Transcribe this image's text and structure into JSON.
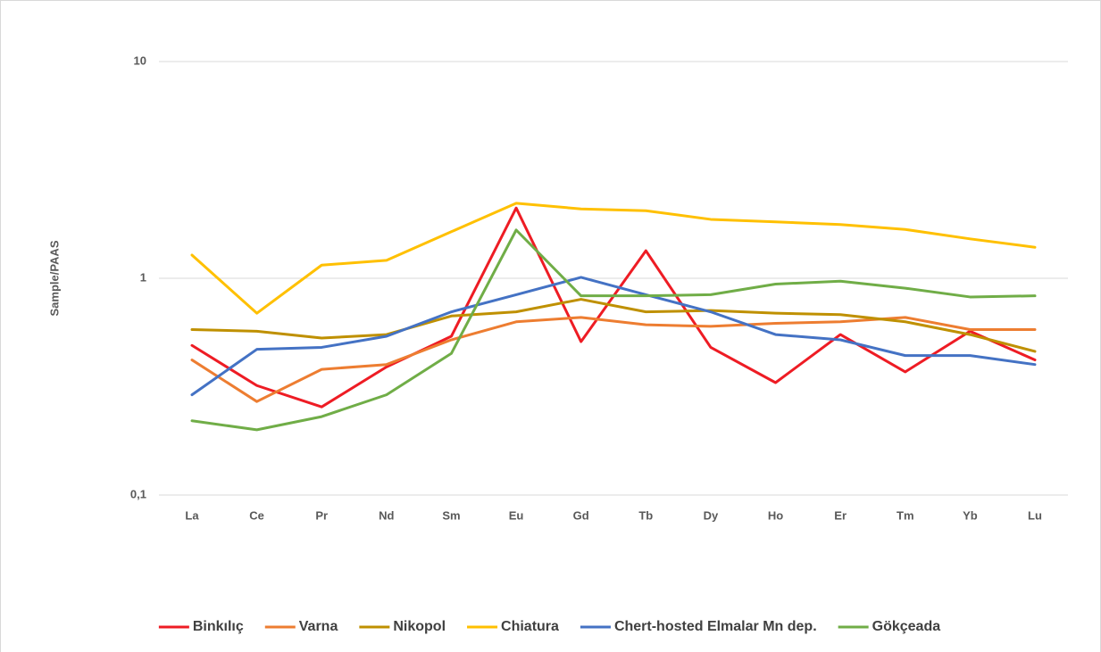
{
  "chart_data": {
    "type": "line",
    "y_label": "Sample/PAAS",
    "categories": [
      "La",
      "Ce",
      "Pr",
      "Nd",
      "Sm",
      "Eu",
      "Gd",
      "Tb",
      "Dy",
      "Ho",
      "Er",
      "Tm",
      "Yb",
      "Lu"
    ],
    "series": [
      {
        "name": "Binkılıç",
        "color": "#ee1c24",
        "values": [
          0.49,
          0.32,
          0.255,
          0.39,
          0.54,
          2.11,
          0.51,
          1.34,
          0.48,
          0.33,
          0.55,
          0.37,
          0.57,
          0.42
        ]
      },
      {
        "name": "Varna",
        "color": "#ed7d31",
        "values": [
          0.42,
          0.27,
          0.38,
          0.4,
          0.52,
          0.63,
          0.66,
          0.61,
          0.6,
          0.62,
          0.63,
          0.66,
          0.58,
          0.58
        ]
      },
      {
        "name": "Nikopol",
        "color": "#bf9000",
        "values": [
          0.58,
          0.57,
          0.53,
          0.55,
          0.67,
          0.7,
          0.8,
          0.7,
          0.71,
          0.69,
          0.68,
          0.63,
          0.55,
          0.46
        ]
      },
      {
        "name": "Chiatura",
        "color": "#ffc000",
        "values": [
          1.28,
          0.69,
          1.15,
          1.21,
          1.64,
          2.22,
          2.09,
          2.05,
          1.87,
          1.82,
          1.77,
          1.68,
          1.52,
          1.39
        ]
      },
      {
        "name": "Chert-hosted Elmalar Mn dep.",
        "color": "#4472c4",
        "values": [
          0.29,
          0.47,
          0.48,
          0.54,
          0.7,
          0.84,
          1.01,
          0.84,
          0.7,
          0.55,
          0.52,
          0.44,
          0.44,
          0.4
        ]
      },
      {
        "name": "Gökçeada",
        "color": "#70ad47",
        "values": [
          0.22,
          0.2,
          0.23,
          0.29,
          0.45,
          1.67,
          0.83,
          0.83,
          0.84,
          0.94,
          0.97,
          0.9,
          0.82,
          0.83
        ]
      }
    ],
    "ylim": [
      0.1,
      10
    ],
    "yticks": [
      {
        "value": 0.1,
        "label": "0,1"
      },
      1,
      10
    ],
    "log_scale": true,
    "grid": true,
    "legend": "bottom"
  }
}
